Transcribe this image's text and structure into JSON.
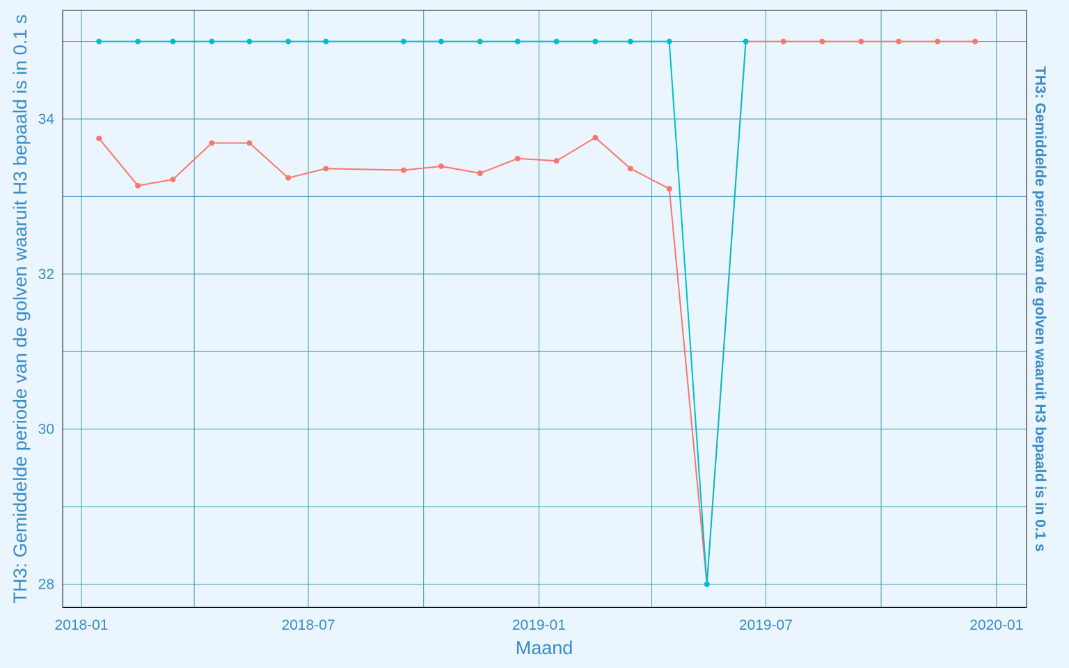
{
  "chart_data": {
    "type": "line",
    "title": "",
    "xlabel": "Maand",
    "ylabel": "TH3: Gemiddelde periode van de golven waaruit H3 bepaald is in 0.1 s",
    "ylabel_right": "TH3: Gemiddelde periode van de golven waaruit H3 bepaald is in 0.1 s",
    "x_ticks": [
      "2018-01",
      "2018-07",
      "2019-01",
      "2019-07",
      "2020-01"
    ],
    "y_ticks": [
      28,
      30,
      32,
      34
    ],
    "ylim": [
      27.7,
      35.4
    ],
    "xlim": [
      "2017-12-17",
      "2020-01-25"
    ],
    "grid": true,
    "legend": "none",
    "x": [
      "2018-01-15",
      "2018-02-15",
      "2018-03-15",
      "2018-04-15",
      "2018-05-15",
      "2018-06-15",
      "2018-07-15",
      "2018-09-15",
      "2018-10-15",
      "2018-11-15",
      "2018-12-15",
      "2019-01-15",
      "2019-02-15",
      "2019-03-15",
      "2019-04-15",
      "2019-05-15",
      "2019-06-15",
      "2019-07-15",
      "2019-08-15",
      "2019-09-15",
      "2019-10-15",
      "2019-11-15",
      "2019-12-15"
    ],
    "series": [
      {
        "color": "#f8766d",
        "values": [
          33.75,
          33.14,
          33.22,
          33.69,
          33.69,
          33.24,
          33.36,
          33.34,
          33.39,
          33.3,
          33.49,
          33.46,
          33.76,
          33.36,
          33.1,
          28.0,
          35.0,
          35.0,
          35.0,
          35.0,
          35.0,
          35.0,
          35.0
        ]
      },
      {
        "color": "#00bfc4",
        "values": [
          35.0,
          35.0,
          35.0,
          35.0,
          35.0,
          35.0,
          35.0,
          35.0,
          35.0,
          35.0,
          35.0,
          35.0,
          35.0,
          35.0,
          35.0,
          28.0,
          35.0,
          null,
          null,
          null,
          null,
          null,
          null
        ]
      }
    ]
  },
  "colors": {
    "background": "#eaf5fd",
    "grid": "#3a9bb0",
    "text": "#3a8cc4",
    "axis_line": "#111111"
  }
}
